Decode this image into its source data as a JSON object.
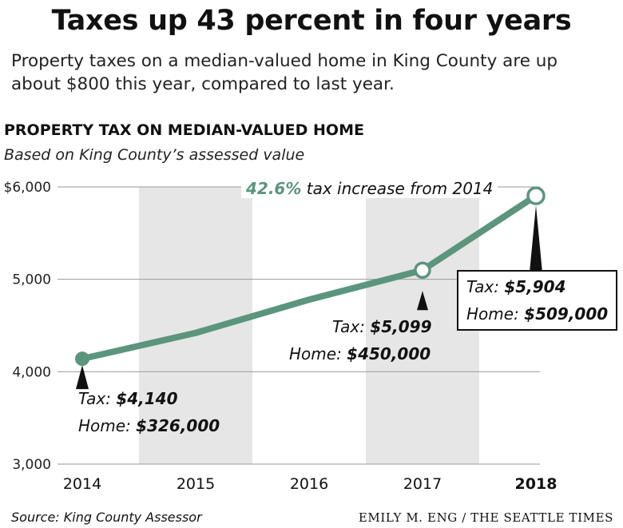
{
  "headline": "Taxes up 43 percent in four years",
  "dek": "Property taxes on a median-valued home in King County are up about $800 this year, compared to last year.",
  "chart_data": {
    "type": "line",
    "title": "PROPERTY TAX ON MEDIAN-VALUED HOME",
    "subtitle": "Based on King County’s assessed value",
    "x": [
      "2014",
      "2015",
      "2016",
      "2017",
      "2018"
    ],
    "series": [
      {
        "values": [
          4140,
          4420,
          4780,
          5099,
          5904
        ]
      }
    ],
    "ylim": [
      3000,
      6000
    ],
    "yticks": [
      "$6,000",
      "5,000",
      "4,000",
      "3,000"
    ],
    "ytick_values": [
      6000,
      5000,
      4000,
      3000
    ],
    "shaded_years": [
      "2015",
      "2017"
    ],
    "highlighted_points": [
      "2014",
      "2017",
      "2018"
    ],
    "callouts": [
      {
        "year": "2014",
        "tax_label": "Tax: ",
        "tax_value": "$4,140",
        "home_label": "Home: ",
        "home_value": "$326,000"
      },
      {
        "year": "2017",
        "tax_label": "Tax: ",
        "tax_value": "$5,099",
        "home_label": "Home: ",
        "home_value": "$450,000"
      },
      {
        "year": "2018",
        "tax_label": "Tax: ",
        "tax_value": "$5,904",
        "home_label": "Home: ",
        "home_value": "$509,000"
      }
    ],
    "annotation": {
      "percent": "42.6%",
      "text": " tax increase from 2014"
    },
    "grid": true,
    "line_color": "#5b957d",
    "shade_color": "#e6e6e6"
  },
  "source": "Source: King County Assessor",
  "credit": "EMILY M. ENG / THE SEATTLE TIMES"
}
